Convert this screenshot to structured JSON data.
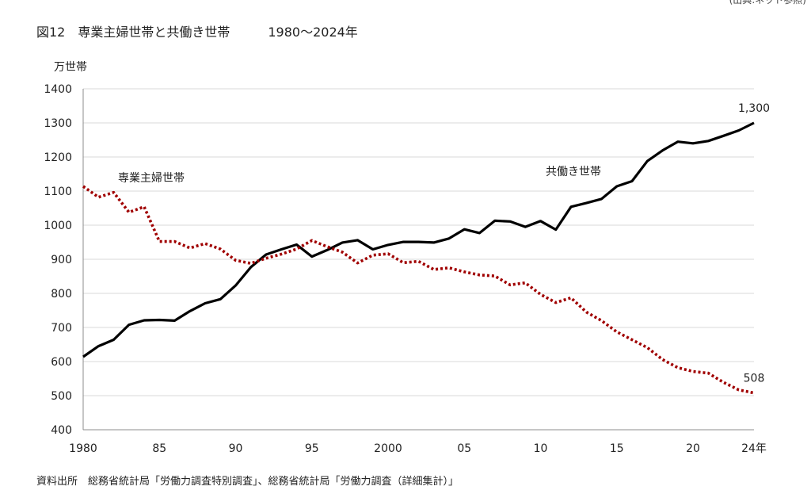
{
  "header": {
    "title": "図12　専業主婦世帯と共働き世帯　　　1980〜2024年",
    "top_right_text": "(出典:ネット参照)"
  },
  "footer": {
    "source": "資料出所　総務省統計局「労働力調査特別調査」、総務省統計局「労働力調査（詳細集計）」"
  },
  "chart_data": {
    "type": "line",
    "title": "図12　専業主婦世帯と共働き世帯　　　1980〜2024年",
    "ylabel": "万世帯",
    "xlabel": "",
    "ylim": [
      400,
      1400
    ],
    "xlim": [
      1980,
      2024
    ],
    "yticks": [
      400,
      500,
      600,
      700,
      800,
      900,
      1000,
      1100,
      1200,
      1300,
      1400
    ],
    "xticks": [
      {
        "value": 1980,
        "label": "1980"
      },
      {
        "value": 1985,
        "label": "85"
      },
      {
        "value": 1990,
        "label": "90"
      },
      {
        "value": 1995,
        "label": "95"
      },
      {
        "value": 2000,
        "label": "2000"
      },
      {
        "value": 2005,
        "label": "05"
      },
      {
        "value": 2010,
        "label": "10"
      },
      {
        "value": 2015,
        "label": "15"
      },
      {
        "value": 2020,
        "label": "20"
      },
      {
        "value": 2024,
        "label": "24年"
      }
    ],
    "grid": true,
    "x": [
      1980,
      1981,
      1982,
      1983,
      1984,
      1985,
      1986,
      1987,
      1988,
      1989,
      1990,
      1991,
      1992,
      1993,
      1994,
      1995,
      1996,
      1997,
      1998,
      1999,
      2000,
      2001,
      2002,
      2003,
      2004,
      2005,
      2006,
      2007,
      2008,
      2009,
      2010,
      2011,
      2012,
      2013,
      2014,
      2015,
      2016,
      2017,
      2018,
      2019,
      2020,
      2021,
      2022,
      2023,
      2024
    ],
    "series": [
      {
        "name": "共働き世帯",
        "color": "#000000",
        "style": "solid",
        "values": [
          614,
          645,
          664,
          708,
          721,
          722,
          720,
          748,
          771,
          783,
          823,
          877,
          914,
          929,
          943,
          908,
          927,
          949,
          956,
          929,
          942,
          951,
          951,
          949,
          961,
          988,
          977,
          1013,
          1011,
          995,
          1012,
          987,
          1054,
          1065,
          1077,
          1114,
          1129,
          1188,
          1219,
          1245,
          1240,
          1247,
          1262,
          1278,
          1300
        ],
        "end_label": "1,300"
      },
      {
        "name": "専業主婦世帯",
        "color": "#a00000",
        "style": "dotted",
        "values": [
          1114,
          1082,
          1096,
          1038,
          1054,
          952,
          952,
          933,
          946,
          930,
          897,
          888,
          903,
          915,
          930,
          955,
          937,
          921,
          889,
          912,
          916,
          890,
          894,
          870,
          875,
          863,
          854,
          851,
          825,
          831,
          797,
          773,
          787,
          745,
          720,
          687,
          664,
          641,
          606,
          582,
          571,
          566,
          539,
          517,
          508
        ],
        "end_label": "508"
      }
    ]
  }
}
